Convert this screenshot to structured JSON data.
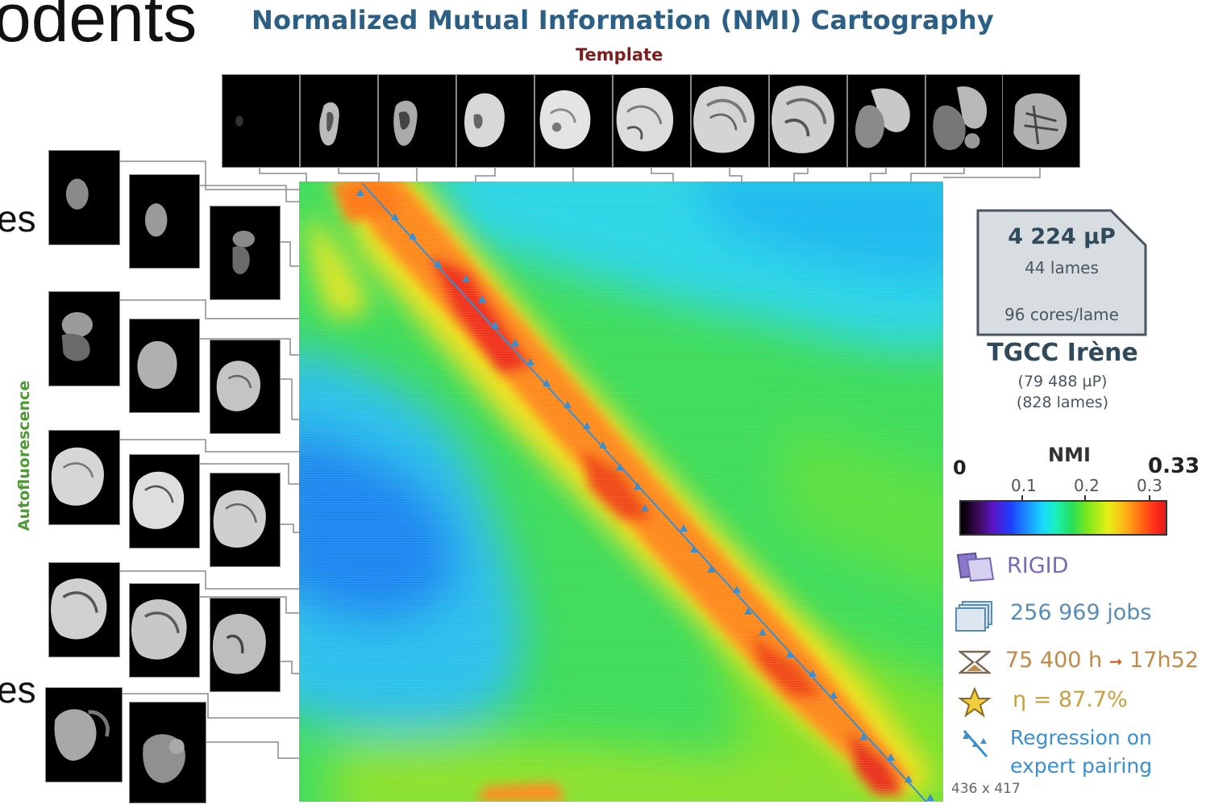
{
  "slide": {
    "partial_heading": "odents",
    "side_word_top": "es",
    "side_word_bottom": "es"
  },
  "figure": {
    "title": "Normalized Mutual Information (NMI) Cartography",
    "template_label": "Template",
    "row_axis_label": "Autofluorescence",
    "heatmap_dims": "436 x 417"
  },
  "stats": {
    "power": "4 224 µP",
    "slides": "44 lames",
    "cores": "96 cores/lame",
    "machine": "TGCC Irène",
    "machine_power": "(79 488 µP)",
    "machine_slides": "(828 lames)"
  },
  "colorbar": {
    "title": "NMI",
    "min": "0",
    "max": "0.33",
    "ticks": [
      "0.1",
      "0.2",
      "0.3"
    ]
  },
  "legend": {
    "rigid": "RIGID",
    "jobs": "256 969 jobs",
    "hours_label": "75 400 h",
    "hours_arrow": "➞",
    "hours_result": "17h52",
    "efficiency": "η = 87.7%",
    "regression_line1": "Regression on",
    "regression_line2": "expert pairing"
  },
  "colors": {
    "title": "#2b5f86",
    "template_label": "#7b1d1d",
    "axis_label": "#4c9a32",
    "rigid": "#7a67b5",
    "jobs": "#5a8db5",
    "hours": "#c08a4a",
    "efficiency": "#c8a040",
    "regression": "#3a8fd0"
  }
}
